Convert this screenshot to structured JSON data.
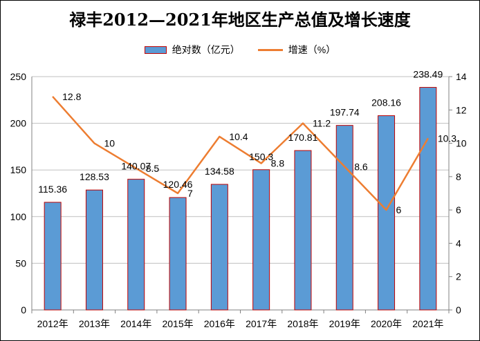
{
  "colors": {
    "bar_fill": "#5B9BD5",
    "bar_border": "#C00000",
    "line": "#ED7D31",
    "grid": "#BFBFBF",
    "axis": "#808080"
  },
  "chart_data": {
    "type": "bar",
    "title": "禄丰2012—2021年地区生产总值及增长速度",
    "categories": [
      "2012年",
      "2013年",
      "2014年",
      "2015年",
      "2016年",
      "2017年",
      "2018年",
      "2019年",
      "2020年",
      "2021年"
    ],
    "series": [
      {
        "name": "绝对数（亿元）",
        "type": "bar",
        "axis": "left",
        "values": [
          115.36,
          128.53,
          140.07,
          120.46,
          134.58,
          150.3,
          170.81,
          197.74,
          208.16,
          238.49
        ],
        "labels": [
          "115.36",
          "128.53",
          "140.07",
          "120.46",
          "134.58",
          "150.3",
          "170.81",
          "197.74",
          "208.16",
          "238.49"
        ]
      },
      {
        "name": "增速（%）",
        "type": "line",
        "axis": "right",
        "values": [
          12.8,
          10,
          8.5,
          7,
          10.4,
          8.8,
          11.2,
          8.6,
          6,
          10.3
        ],
        "labels": [
          "12.8",
          "10",
          "8.5",
          "7",
          "10.4",
          "8.8",
          "11.2",
          "8.6",
          "6",
          "10.3"
        ]
      }
    ],
    "y_left": {
      "ylim": [
        0,
        250
      ],
      "ticks": [
        "0",
        "50",
        "100",
        "150",
        "200",
        "250"
      ]
    },
    "y_right": {
      "ylim": [
        0,
        14
      ],
      "ticks": [
        "0",
        "2",
        "4",
        "6",
        "8",
        "10",
        "12",
        "14"
      ]
    },
    "grid": true,
    "legend": "top"
  }
}
